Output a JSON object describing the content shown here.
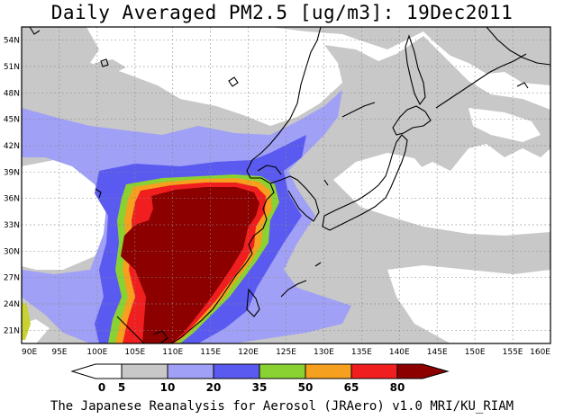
{
  "title": "Daily Averaged PM2.5 [ug/m3]: 19Dec2011",
  "footer": "The Japanese Reanalysis for Aerosol (JRAero) v1.0 MRI/KU_RIAM",
  "map": {
    "lon_range": [
      90,
      160
    ],
    "lat_range": [
      19.5,
      55.5
    ],
    "lon_ticks": [
      "90E",
      "95E",
      "100E",
      "105E",
      "110E",
      "115E",
      "120E",
      "125E",
      "130E",
      "135E",
      "140E",
      "145E",
      "150E",
      "155E",
      "160E"
    ],
    "lat_ticks": [
      "21N",
      "24N",
      "27N",
      "30N",
      "33N",
      "36N",
      "39N",
      "42N",
      "45N",
      "48N",
      "51N",
      "54N"
    ],
    "grid": "dotted"
  },
  "colorbar": {
    "labels": [
      "0",
      "5",
      "10",
      "20",
      "35",
      "50",
      "65",
      "80"
    ],
    "colors": [
      "#ffffff",
      "#c8c8c8",
      "#a0a0f6",
      "#5a5af0",
      "#8ad232",
      "#f5a01e",
      "#f01e1e",
      "#8c0000"
    ]
  }
}
